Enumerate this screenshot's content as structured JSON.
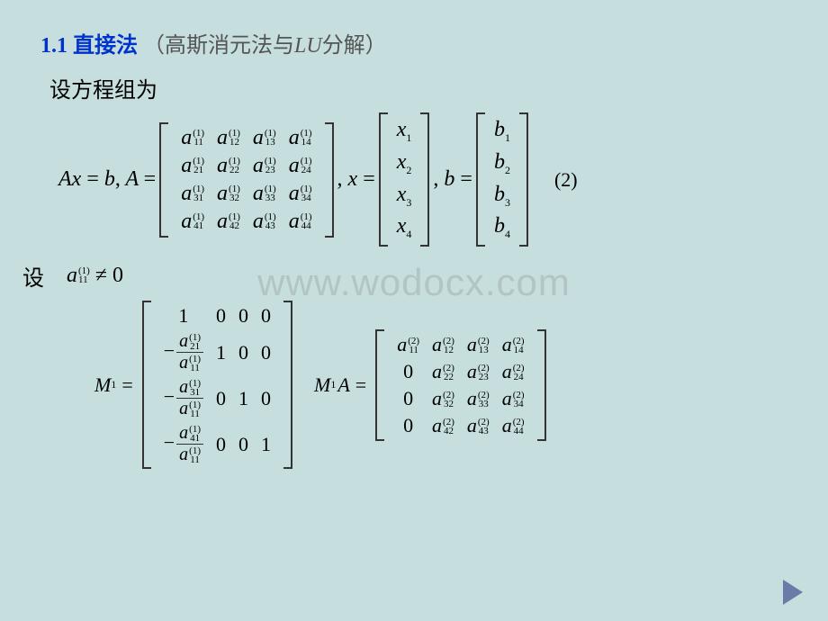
{
  "title": {
    "number": "1.1",
    "main": "直接法",
    "paren_prefix": "（高斯消元法与",
    "paren_lu": "LU",
    "paren_suffix": "分解）"
  },
  "subtitle": "设方程组为",
  "eq1": {
    "lhs": "Ax = b, A =",
    "x_eq": ", x =",
    "b_eq": ", b =",
    "label": "(2)",
    "A_base": "a",
    "A_sup": "(1)",
    "A_subs": [
      [
        "11",
        "12",
        "13",
        "14"
      ],
      [
        "21",
        "22",
        "23",
        "24"
      ],
      [
        "31",
        "32",
        "33",
        "34"
      ],
      [
        "41",
        "42",
        "43",
        "44"
      ]
    ],
    "x_base": "x",
    "x_subs": [
      "1",
      "2",
      "3",
      "4"
    ],
    "b_base": "b",
    "b_subs": [
      "1",
      "2",
      "3",
      "4"
    ]
  },
  "row2": {
    "text": "设",
    "expr_a": "a",
    "expr_sup": "(1)",
    "expr_sub": "11",
    "neq": "≠ 0"
  },
  "M1": {
    "label": "M",
    "label_sub": "1",
    "eq": " =",
    "frac_num_base": "a",
    "frac_sup": "(1)",
    "frac_den_sub": "11",
    "rows": [
      [
        "1",
        "0",
        "0",
        "0"
      ],
      [
        "F:21",
        "1",
        "0",
        "0"
      ],
      [
        "F:31",
        "0",
        "1",
        "0"
      ],
      [
        "F:41",
        "0",
        "0",
        "1"
      ]
    ]
  },
  "M1A": {
    "label": "M",
    "label_sub": "1",
    "A": "A =",
    "base": "a",
    "sup": "(2)",
    "rows": [
      [
        "11",
        "12",
        "13",
        "14"
      ],
      [
        "0",
        "22",
        "23",
        "24"
      ],
      [
        "0",
        "32",
        "33",
        "34"
      ],
      [
        "0",
        "42",
        "43",
        "44"
      ]
    ]
  },
  "watermark": "www.wodocx.com",
  "colors": {
    "background": "#c6dede",
    "title": "#0033cc",
    "text": "#333333",
    "arrow": "#6b7ba8"
  }
}
